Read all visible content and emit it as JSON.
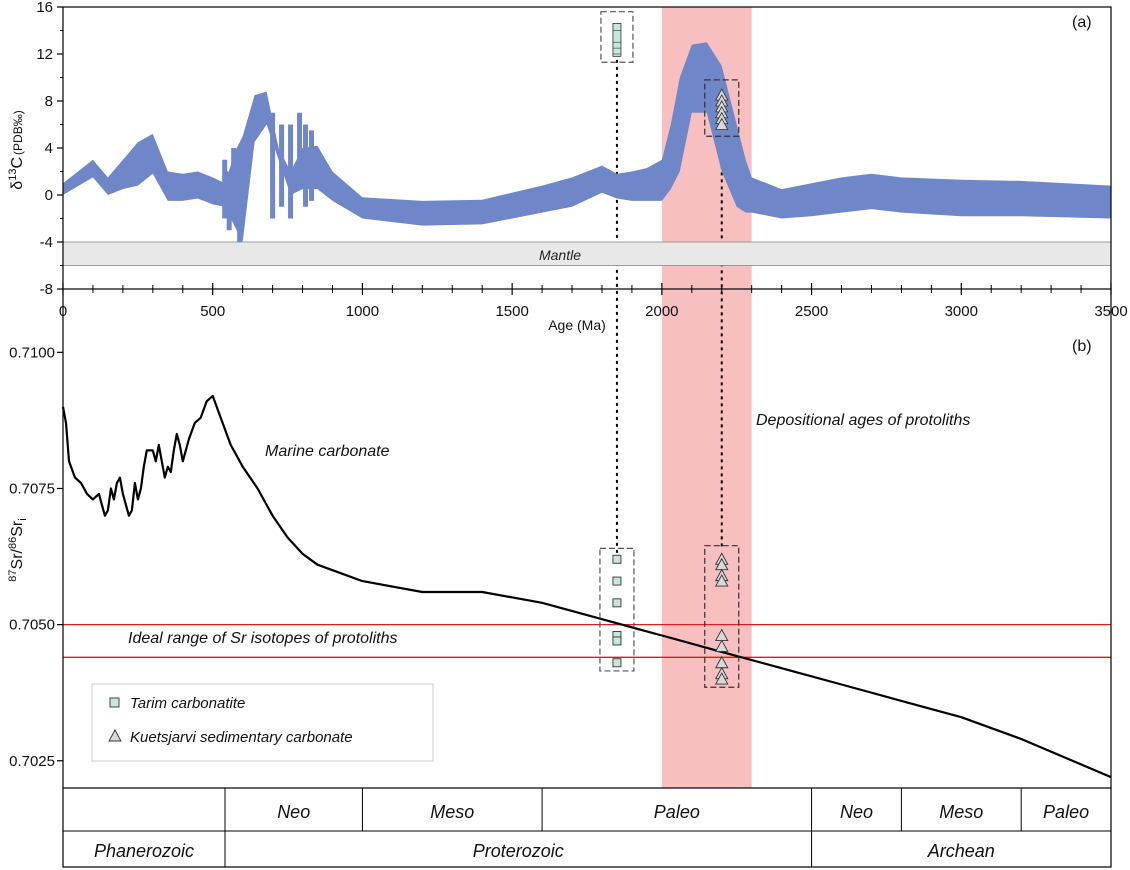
{
  "chart_data": [
    {
      "panel": "(a)",
      "type": "area",
      "ylabel_main": "δ",
      "ylabel_sup": "13",
      "ylabel_mid": "C",
      "ylabel_sub": "(PDB‰)",
      "ylim": [
        -8,
        16
      ],
      "xlim": [
        0,
        3500
      ],
      "yticks": [
        "16",
        "12",
        "8",
        "4",
        "0",
        "-4",
        "-8"
      ],
      "xticks": [
        "0",
        "500",
        "1000",
        "1500",
        "2000",
        "2500",
        "3000",
        "3500"
      ],
      "xlabel": "Age (Ma)",
      "mantle_band": {
        "label": "Mantle",
        "range": [
          -6,
          -4
        ]
      },
      "envelope": {
        "age": [
          0,
          100,
          150,
          200,
          250,
          300,
          350,
          400,
          450,
          500,
          540,
          560,
          580,
          600,
          640,
          680,
          720,
          760,
          800,
          850,
          900,
          1000,
          1200,
          1400,
          1600,
          1700,
          1800,
          1850,
          1900,
          1950,
          2000,
          2030,
          2060,
          2100,
          2150,
          2200,
          2250,
          2280,
          2300,
          2400,
          2500,
          2600,
          2700,
          2800,
          3000,
          3200,
          3500
        ],
        "upper": [
          1.0,
          3.0,
          1.5,
          3.0,
          4.5,
          5.2,
          2.0,
          1.8,
          2.0,
          1.5,
          1.0,
          2.5,
          4.0,
          5.0,
          8.5,
          8.8,
          4.0,
          2.0,
          4.0,
          4.2,
          2.0,
          -0.2,
          -0.5,
          -0.4,
          0.8,
          1.5,
          2.5,
          1.8,
          2.0,
          2.3,
          3.0,
          6.0,
          10.0,
          12.8,
          13.0,
          11.0,
          6.0,
          3.0,
          1.5,
          0.5,
          1.0,
          1.5,
          1.8,
          1.5,
          1.3,
          1.2,
          0.8
        ],
        "lower": [
          0.0,
          1.5,
          0.0,
          0.5,
          0.8,
          1.8,
          -0.5,
          -0.5,
          -0.3,
          -0.8,
          -1.0,
          -2.0,
          -3.0,
          -4.0,
          4.5,
          6.0,
          3.0,
          0.0,
          0.5,
          0.5,
          -0.5,
          -2.0,
          -2.6,
          -2.5,
          -1.5,
          -1.0,
          0.2,
          -0.3,
          -0.5,
          -0.5,
          -0.5,
          0.5,
          2.0,
          7.0,
          7.0,
          2.0,
          -1.0,
          -1.5,
          -1.5,
          -2.0,
          -1.8,
          -1.5,
          -1.2,
          -1.5,
          -1.8,
          -1.8,
          -2.0
        ]
      },
      "spikes": [
        {
          "age": 540,
          "top": 3.0,
          "bottom": -2.0
        },
        {
          "age": 555,
          "top": 2.0,
          "bottom": -3.0
        },
        {
          "age": 570,
          "top": 4.0,
          "bottom": -2.0
        },
        {
          "age": 590,
          "top": 3.0,
          "bottom": -4.0
        },
        {
          "age": 700,
          "top": 7.0,
          "bottom": -2.0
        },
        {
          "age": 730,
          "top": 6.0,
          "bottom": -1.0
        },
        {
          "age": 760,
          "top": 6.0,
          "bottom": -2.0
        },
        {
          "age": 790,
          "top": 7.0,
          "bottom": 1.0
        },
        {
          "age": 810,
          "top": 6.0,
          "bottom": -1.0
        },
        {
          "age": 830,
          "top": 5.5,
          "bottom": -0.5
        }
      ],
      "tarim_box": {
        "age": 1850,
        "values": [
          14.0,
          13.0,
          12.5,
          12.0
        ]
      },
      "kuetsjarvi_box": {
        "age": 2200,
        "values": [
          8.5,
          8.0,
          7.5,
          7.0,
          6.5,
          6.0
        ]
      },
      "highlight_range": [
        2000,
        2300
      ]
    },
    {
      "panel": "(b)",
      "type": "line",
      "ylabel_sup1": "87",
      "ylabel_mid1": "Sr/",
      "ylabel_sup2": "86",
      "ylabel_mid2": "Sr",
      "ylabel_sub": "i",
      "ylim": [
        0.702,
        0.7103
      ],
      "xlim": [
        0,
        3500
      ],
      "yticks": [
        {
          "label": "0.7100",
          "value": 0.71
        },
        {
          "label": "0.7075",
          "value": 0.7075
        },
        {
          "label": "0.7050",
          "value": 0.705
        },
        {
          "label": "0.7025",
          "value": 0.7025
        }
      ],
      "series": [
        {
          "name": "Marine carbonate",
          "x": [
            0,
            10,
            20,
            40,
            60,
            80,
            100,
            120,
            130,
            140,
            150,
            160,
            170,
            180,
            190,
            200,
            210,
            220,
            230,
            240,
            250,
            260,
            270,
            280,
            300,
            310,
            320,
            330,
            340,
            350,
            360,
            370,
            380,
            390,
            400,
            410,
            420,
            440,
            460,
            480,
            500,
            520,
            560,
            600,
            650,
            700,
            750,
            800,
            850,
            900,
            1000,
            1200,
            1400,
            1600,
            1800,
            2000,
            2200,
            2400,
            2600,
            2800,
            3000,
            3200,
            3500
          ],
          "y": [
            0.709,
            0.7087,
            0.708,
            0.7077,
            0.7076,
            0.7074,
            0.7073,
            0.7074,
            0.7072,
            0.707,
            0.7071,
            0.7075,
            0.7073,
            0.7076,
            0.7077,
            0.7074,
            0.7072,
            0.707,
            0.7071,
            0.7076,
            0.7073,
            0.7075,
            0.7079,
            0.7082,
            0.7082,
            0.708,
            0.7083,
            0.708,
            0.7077,
            0.7079,
            0.7078,
            0.7082,
            0.7085,
            0.7083,
            0.708,
            0.7082,
            0.7084,
            0.7087,
            0.7088,
            0.7091,
            0.7092,
            0.7089,
            0.7083,
            0.7079,
            0.7075,
            0.707,
            0.7066,
            0.7063,
            0.7061,
            0.706,
            0.7058,
            0.7056,
            0.7056,
            0.7054,
            0.7051,
            0.7048,
            0.7045,
            0.7042,
            0.7039,
            0.7036,
            0.7033,
            0.7029,
            0.7022
          ]
        }
      ],
      "marine_label": "Marine carbonate",
      "depositional_label": "Depositional ages of protoliths",
      "ideal_label": "Ideal range of Sr isotopes of protoliths",
      "ideal_range": [
        0.7044,
        0.705
      ],
      "tarim_points": {
        "age": 1850,
        "values": [
          0.7062,
          0.7058,
          0.7054,
          0.7048,
          0.7047,
          0.7043
        ]
      },
      "kuetsjarvi_points": {
        "age": 2200,
        "values": [
          0.7062,
          0.7061,
          0.7059,
          0.7058,
          0.7048,
          0.7046,
          0.7043,
          0.7041,
          0.704
        ]
      },
      "highlight_range": [
        2000,
        2300
      ],
      "legend": {
        "placement": "bottom-left",
        "items": [
          {
            "label": "Tarim carbonatite",
            "marker": "square"
          },
          {
            "label": "Kuetsjarvi sedimentary carbonate",
            "marker": "triangle"
          }
        ]
      }
    }
  ],
  "timescale": {
    "eras": [
      {
        "label": "Neo",
        "from": 541,
        "to": 1000
      },
      {
        "label": "Meso",
        "from": 1000,
        "to": 1600
      },
      {
        "label": "Paleo",
        "from": 1600,
        "to": 2500
      },
      {
        "label": "Neo",
        "from": 2500,
        "to": 2800
      },
      {
        "label": "Meso",
        "from": 2800,
        "to": 3200
      },
      {
        "label": "Paleo",
        "from": 3200,
        "to": 3500
      }
    ],
    "eons": [
      {
        "label": "Phanerozoic",
        "from": 0,
        "to": 541
      },
      {
        "label": "Proterozoic",
        "from": 541,
        "to": 2500
      },
      {
        "label": "Archean",
        "from": 2500,
        "to": 3500
      }
    ]
  },
  "colors": {
    "envelope": "#6f87c8",
    "highlight": "#f4a9a9",
    "mantle": "#e8e8e8",
    "ideal_lines": "#d62020",
    "marker_fill": "#c8e6dc",
    "box_dash": "#555555"
  }
}
